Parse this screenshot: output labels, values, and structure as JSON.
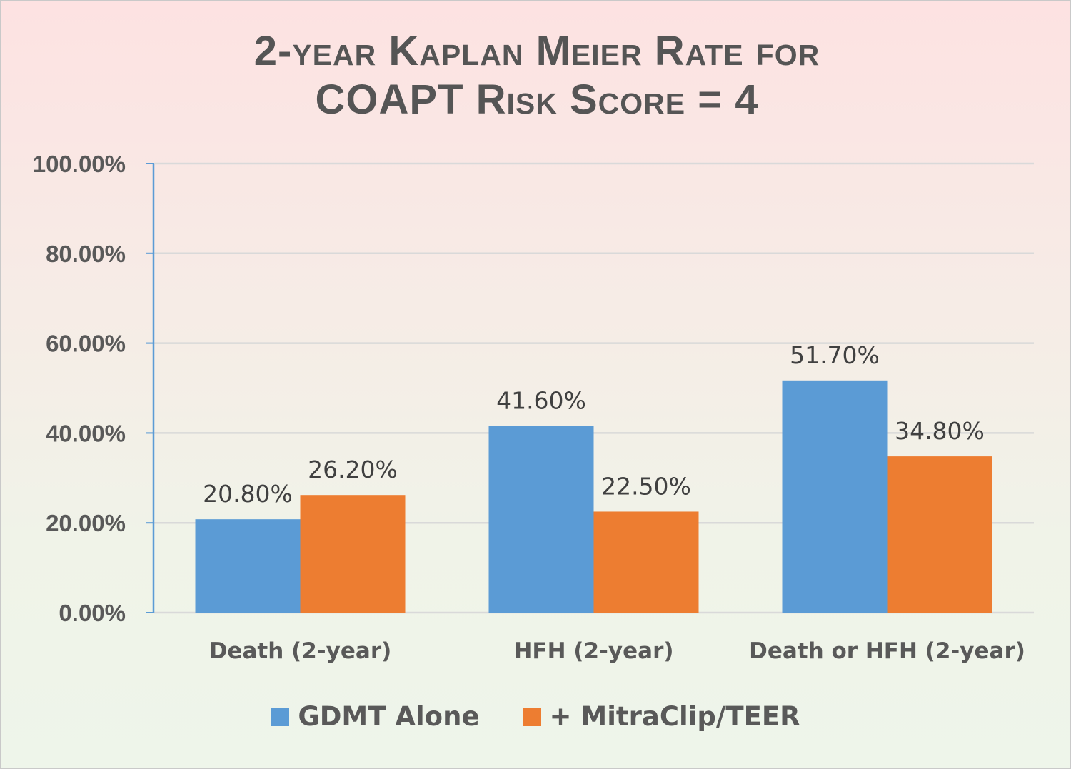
{
  "chart_data": {
    "type": "bar",
    "title_lines": [
      "2-year Kaplan Meier Rate for",
      "COAPT Risk Score = 4"
    ],
    "categories": [
      "Death (2-year)",
      "HFH (2-year)",
      "Death or HFH (2-year)"
    ],
    "series": [
      {
        "name": "GDMT Alone",
        "color": "#5b9bd5",
        "values": [
          20.8,
          41.6,
          51.7
        ],
        "labels": [
          "20.80%",
          "41.60%",
          "51.70%"
        ]
      },
      {
        "name": "+ MitraClip/TEER",
        "color": "#ed7d31",
        "values": [
          26.2,
          22.5,
          34.8
        ],
        "labels": [
          "26.20%",
          "22.50%",
          "34.80%"
        ]
      }
    ],
    "ylim": [
      0,
      100
    ],
    "yticks": [
      0,
      20,
      40,
      60,
      80,
      100
    ],
    "ytick_labels": [
      "0.00%",
      "20.00%",
      "40.00%",
      "60.00%",
      "80.00%",
      "100.00%"
    ],
    "grid": true,
    "legend_position": "bottom"
  }
}
